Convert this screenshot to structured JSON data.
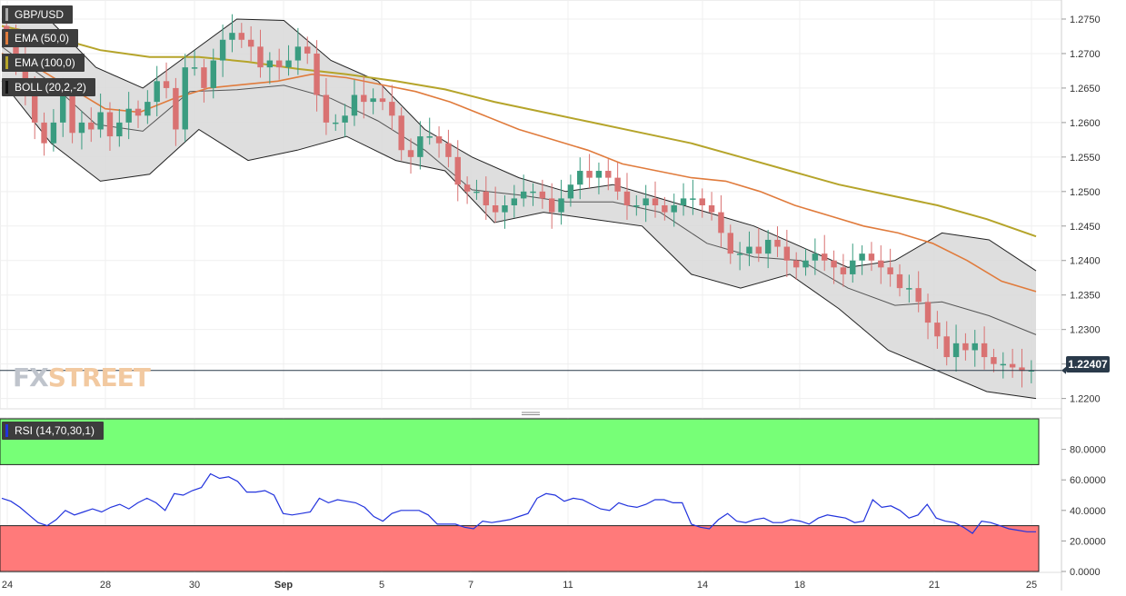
{
  "labels": {
    "symbol": "GBP/USD",
    "ema50": "EMA (50,0)",
    "ema100": "EMA (100,0)",
    "boll": "BOLL (20,2,-2)",
    "rsi": "RSI (14,70,30,1)",
    "current_price": "1.22407"
  },
  "logo": {
    "part1": "FX",
    "part2": "STREET"
  },
  "colors": {
    "up": "#3a9c80",
    "down": "#d97272",
    "ema50": "#e07b3c",
    "ema100": "#b5a42a",
    "boll": "#333333",
    "rsi_line": "#2233dd",
    "rsi_overbought": "#77ff77",
    "rsi_oversold": "#ff7a7a"
  },
  "chart_data": [
    {
      "type": "candlestick",
      "symbol": "GBP/USD",
      "y_ticks": [
        "1.2200",
        "1.2250",
        "1.2300",
        "1.2350",
        "1.2400",
        "1.2450",
        "1.2500",
        "1.2550",
        "1.2600",
        "1.2650",
        "1.2700",
        "1.2750"
      ],
      "ylim": [
        1.2185,
        1.2775
      ],
      "x_ticks": [
        "24",
        "28",
        "30",
        "Sep",
        "5",
        "7",
        "11",
        "14",
        "18",
        "21",
        "25"
      ],
      "current_price": 1.22407,
      "close_series": [
        1.2725,
        1.269,
        1.264,
        1.26,
        1.257,
        1.26,
        1.264,
        1.2585,
        1.26,
        1.259,
        1.2615,
        1.258,
        1.26,
        1.262,
        1.261,
        1.263,
        1.266,
        1.265,
        1.259,
        1.268,
        1.268,
        1.265,
        1.269,
        1.272,
        1.273,
        1.272,
        1.271,
        1.268,
        1.269,
        1.268,
        1.269,
        1.271,
        1.27,
        1.264,
        1.26,
        1.26,
        1.261,
        1.264,
        1.263,
        1.2635,
        1.263,
        1.261,
        1.256,
        1.255,
        1.258,
        1.258,
        1.257,
        1.255,
        1.251,
        1.25,
        1.25,
        1.248,
        1.247,
        1.248,
        1.249,
        1.25,
        1.25,
        1.249,
        1.247,
        1.249,
        1.251,
        1.253,
        1.252,
        1.253,
        1.252,
        1.25,
        1.248,
        1.248,
        1.249,
        1.248,
        1.247,
        1.248,
        1.249,
        1.249,
        1.248,
        1.247,
        1.244,
        1.241,
        1.241,
        1.242,
        1.241,
        1.243,
        1.242,
        1.24,
        1.239,
        1.24,
        1.241,
        1.24,
        1.239,
        1.238,
        1.24,
        1.241,
        1.24,
        1.239,
        1.238,
        1.236,
        1.236,
        1.234,
        1.231,
        1.229,
        1.226,
        1.228,
        1.227,
        1.228,
        1.226,
        1.225,
        1.225,
        1.2245,
        1.224,
        1.2241
      ],
      "ema50_series": [
        1.27,
        1.268,
        1.265,
        1.262,
        1.2615,
        1.2635,
        1.265,
        1.2655,
        1.266,
        1.267,
        1.2665,
        1.2655,
        1.2645,
        1.263,
        1.261,
        1.259,
        1.2575,
        1.256,
        1.254,
        1.253,
        1.252,
        1.2515,
        1.25,
        1.248,
        1.2465,
        1.245,
        1.244,
        1.2425,
        1.24,
        1.237,
        1.2355
      ],
      "ema100_series": [
        1.274,
        1.2725,
        1.2705,
        1.2695,
        1.2695,
        1.2688,
        1.2678,
        1.267,
        1.266,
        1.2648,
        1.263,
        1.2615,
        1.26,
        1.2585,
        1.257,
        1.255,
        1.253,
        1.251,
        1.2495,
        1.248,
        1.246,
        1.2435
      ],
      "boll_upper_series": [
        1.276,
        1.275,
        1.268,
        1.265,
        1.27,
        1.275,
        1.2748,
        1.269,
        1.266,
        1.259,
        1.255,
        1.252,
        1.25,
        1.251,
        1.249,
        1.247,
        1.245,
        1.242,
        1.239,
        1.24,
        1.244,
        1.243,
        1.2385
      ],
      "boll_lower_series": [
        1.266,
        1.257,
        1.2515,
        1.2525,
        1.259,
        1.2545,
        1.256,
        1.258,
        1.2545,
        1.253,
        1.2455,
        1.247,
        1.246,
        1.245,
        1.238,
        1.236,
        1.238,
        1.233,
        1.227,
        1.224,
        1.221,
        1.22
      ]
    },
    {
      "type": "line",
      "name": "RSI (14,70,30,1)",
      "y_ticks": [
        "0.0000",
        "20.0000",
        "40.0000",
        "60.0000",
        "80.0000"
      ],
      "ylim": [
        0,
        100
      ],
      "overbought": 70,
      "oversold": 30,
      "values": [
        48,
        46,
        42,
        37,
        32,
        30,
        34,
        40,
        37,
        39,
        41,
        39,
        42,
        44,
        41,
        45,
        48,
        45,
        40,
        51,
        50,
        53,
        55,
        64,
        61,
        62,
        59,
        52,
        52,
        53,
        50,
        38,
        37,
        38,
        39,
        48,
        45,
        47,
        46,
        45,
        42,
        36,
        33,
        38,
        40,
        40,
        40,
        37,
        31,
        31,
        31,
        29,
        28,
        33,
        32,
        33,
        34,
        36,
        38,
        48,
        51,
        50,
        46,
        48,
        47,
        44,
        41,
        40,
        45,
        43,
        42,
        44,
        47,
        47,
        45,
        45,
        31,
        29,
        28,
        34,
        38,
        33,
        32,
        34,
        35,
        32,
        32,
        34,
        33,
        31,
        35,
        37,
        36,
        35,
        32,
        33,
        47,
        42,
        43,
        40,
        35,
        37,
        44,
        35,
        33,
        32,
        29,
        25,
        33,
        32,
        30,
        28,
        27,
        26,
        26
      ]
    }
  ]
}
